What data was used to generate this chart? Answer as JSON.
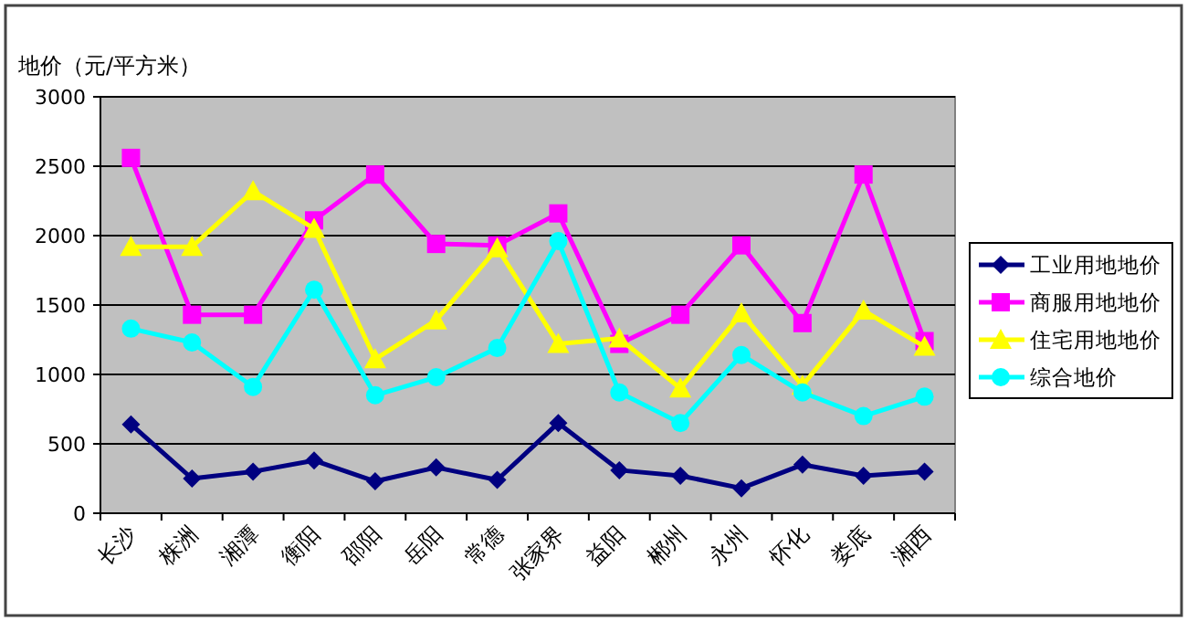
{
  "chart_data": {
    "type": "line",
    "ylabel": "地价（元/平方米）",
    "categories": [
      "长沙",
      "株洲",
      "湘潭",
      "衡阳",
      "邵阳",
      "岳阳",
      "常德",
      "张家界",
      "益阳",
      "郴州",
      "永州",
      "怀化",
      "娄底",
      "湘西"
    ],
    "series": [
      {
        "name": "工业用地地价",
        "color": "#000080",
        "marker": "diamond",
        "values": [
          640,
          250,
          300,
          380,
          230,
          330,
          240,
          650,
          310,
          270,
          180,
          350,
          270,
          300
        ]
      },
      {
        "name": "商服用地地价",
        "color": "#ff00ff",
        "marker": "square",
        "values": [
          2560,
          1430,
          1430,
          2110,
          2440,
          1940,
          1930,
          2160,
          1220,
          1430,
          1930,
          1370,
          2440,
          1240
        ]
      },
      {
        "name": "住宅用地地价",
        "color": "#ffff00",
        "marker": "triangle",
        "values": [
          1920,
          1920,
          2320,
          2050,
          1110,
          1390,
          1910,
          1220,
          1260,
          900,
          1440,
          920,
          1460,
          1200
        ]
      },
      {
        "name": "综合地价",
        "color": "#00ffff",
        "marker": "circle",
        "values": [
          1330,
          1230,
          910,
          1610,
          850,
          980,
          1190,
          1960,
          870,
          650,
          1140,
          870,
          700,
          840
        ]
      }
    ],
    "ylim": [
      0,
      3000
    ],
    "yticks": [
      0,
      500,
      1000,
      1500,
      2000,
      2500,
      3000
    ],
    "grid": "y",
    "legend": "right"
  }
}
